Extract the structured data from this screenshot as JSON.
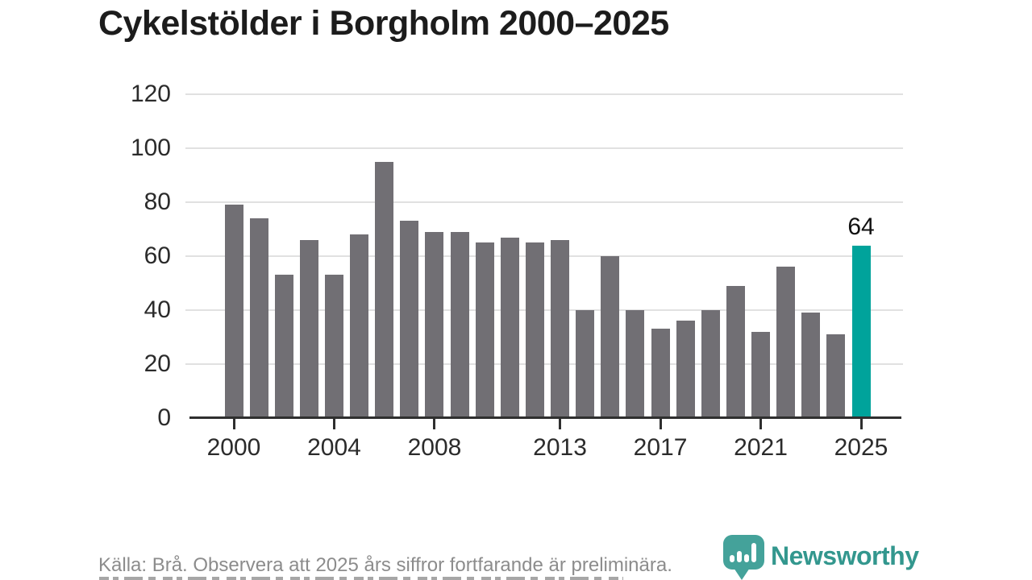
{
  "title": "Cykelstölder i Borgholm 2000–2025",
  "footer": {
    "source_text": "Källa: Brå. Observera att 2025 års siffror fortfarande är preliminära."
  },
  "logo": {
    "name": "Newsworthy",
    "icon": "newsworthy-pin-barchart-icon"
  },
  "colors": {
    "title_text": "#1c1c1c",
    "tick_text": "#2b2b2b",
    "gridline": "#e1e1e1",
    "axis": "#2f2f2f",
    "bar_default": "#716f74",
    "bar_highlight": "#00a39b",
    "footer_text": "#8c8c8c",
    "logo_teal_icon": "#44a29a",
    "logo_teal_text": "#33978e"
  },
  "chart_data": {
    "type": "bar",
    "title": "Cykelstölder i Borgholm 2000–2025",
    "xlabel": "",
    "ylabel": "",
    "x": [
      2000,
      2001,
      2002,
      2003,
      2004,
      2005,
      2006,
      2007,
      2008,
      2009,
      2010,
      2011,
      2012,
      2013,
      2014,
      2015,
      2016,
      2017,
      2018,
      2019,
      2020,
      2021,
      2022,
      2023,
      2024,
      2025
    ],
    "values": [
      79,
      74,
      53,
      66,
      53,
      68,
      95,
      73,
      69,
      69,
      65,
      67,
      65,
      66,
      40,
      60,
      40,
      33,
      36,
      40,
      49,
      32,
      56,
      39,
      31,
      64
    ],
    "ylim": [
      0,
      120
    ],
    "yticks": [
      0,
      20,
      40,
      60,
      80,
      100,
      120
    ],
    "xticks": [
      2000,
      2004,
      2008,
      2013,
      2017,
      2021,
      2025
    ],
    "grid": "horizontal",
    "legend": "none",
    "highlight_year": 2025,
    "annotation": {
      "year": 2025,
      "text": "64"
    }
  }
}
